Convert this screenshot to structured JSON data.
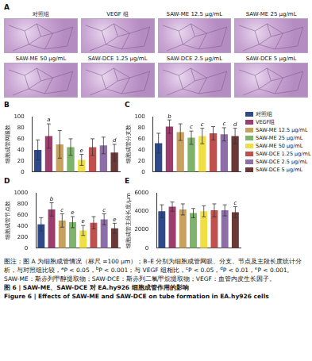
{
  "panel_a": {
    "letter": "A",
    "images": [
      "对照组",
      "VEGF 组",
      "SAW-ME 12.5 μg/mL",
      "SAW-ME 25 μg/mL",
      "SAW-ME 50 μg/mL",
      "SAW-DCE 1.25 μg/mL",
      "SAW-DCE 2.5 μg/mL",
      "SAW-DCE 5 μg/mL"
    ]
  },
  "chart_data": [
    {
      "panel": "B",
      "type": "bar",
      "y_label": "细胞成管网眼数",
      "categories": [
        "对照组",
        "VEGF组",
        "SAW-ME 12.5 μg/mL",
        "SAW-ME 25 μg/mL",
        "SAW-ME 50 μg/mL",
        "SAW-DCE 1.25 μg/mL",
        "SAW-DCE 2.5 μg/mL",
        "SAW-DCE 5 μg/mL"
      ],
      "values": [
        40,
        65,
        50,
        45,
        22,
        45,
        48,
        35
      ],
      "errors": [
        18,
        22,
        25,
        15,
        10,
        15,
        15,
        15
      ],
      "annotations": [
        null,
        "a",
        null,
        null,
        "e",
        null,
        null,
        "d"
      ],
      "colors": [
        "#2e4a8b",
        "#9c3d6d",
        "#c9a15e",
        "#7db36a",
        "#f0de45",
        "#c0504d",
        "#8d6ea8",
        "#6b3838"
      ],
      "ylim": [
        0,
        100
      ],
      "yticks": [
        0,
        20,
        40,
        60,
        80,
        100
      ],
      "tick_labels": "y",
      "grid": false,
      "legend": "right"
    },
    {
      "panel": "C",
      "type": "bar",
      "y_label": "细胞成管分支数",
      "categories": [
        "对照组",
        "VEGF组",
        "SAW-ME 12.5 μg/mL",
        "SAW-ME 25 μg/mL",
        "SAW-ME 50 μg/mL",
        "SAW-DCE 1.25 μg/mL",
        "SAW-DCE 2.5 μg/mL",
        "SAW-DCE 5 μg/mL"
      ],
      "values": [
        52,
        82,
        72,
        62,
        65,
        70,
        68,
        65
      ],
      "errors": [
        18,
        12,
        15,
        12,
        14,
        12,
        12,
        14
      ],
      "annotations": [
        null,
        "b",
        null,
        "c",
        "c",
        null,
        "c",
        "d"
      ],
      "colors": [
        "#2e4a8b",
        "#9c3d6d",
        "#c9a15e",
        "#7db36a",
        "#f0de45",
        "#c0504d",
        "#8d6ea8",
        "#6b3838"
      ],
      "ylim": [
        0,
        100
      ],
      "yticks": [
        0,
        20,
        40,
        60,
        80,
        100
      ],
      "tick_labels": "y",
      "grid": false
    },
    {
      "panel": "D",
      "type": "bar",
      "y_label": "细胞成管节点数",
      "categories": [
        "对照组",
        "VEGF组",
        "SAW-ME 12.5 μg/mL",
        "SAW-ME 25 μg/mL",
        "SAW-ME 50 μg/mL",
        "SAW-DCE 1.25 μg/mL",
        "SAW-DCE 2.5 μg/mL",
        "SAW-DCE 5 μg/mL"
      ],
      "values": [
        430,
        700,
        500,
        470,
        320,
        460,
        520,
        360
      ],
      "errors": [
        120,
        120,
        120,
        100,
        90,
        110,
        100,
        90
      ],
      "annotations": [
        null,
        "b",
        "c",
        "e",
        "e",
        null,
        "c",
        "e"
      ],
      "colors": [
        "#2e4a8b",
        "#9c3d6d",
        "#c9a15e",
        "#7db36a",
        "#f0de45",
        "#c0504d",
        "#8d6ea8",
        "#6b3838"
      ],
      "ylim": [
        0,
        1000
      ],
      "yticks": [
        0,
        200,
        400,
        600,
        800,
        1000
      ],
      "tick_labels": "y",
      "grid": false
    },
    {
      "panel": "E",
      "type": "bar",
      "y_label": "细胞成管主段长度/μm",
      "categories": [
        "对照组",
        "VEGF组",
        "SAW-ME 12.5 μg/mL",
        "SAW-ME 25 μg/mL",
        "SAW-ME 50 μg/mL",
        "SAW-DCE 1.25 μg/mL",
        "SAW-DCE 2.5 μg/mL",
        "SAW-DCE 5 μg/mL"
      ],
      "values": [
        4000,
        4500,
        4200,
        3800,
        4000,
        4100,
        4100,
        3900
      ],
      "errors": [
        700,
        500,
        600,
        500,
        600,
        700,
        600,
        600
      ],
      "annotations": [
        null,
        null,
        null,
        null,
        null,
        null,
        null,
        "c"
      ],
      "colors": [
        "#2e4a8b",
        "#9c3d6d",
        "#c9a15e",
        "#7db36a",
        "#f0de45",
        "#c0504d",
        "#8d6ea8",
        "#6b3838"
      ],
      "ylim": [
        0,
        6000
      ],
      "yticks": [
        0,
        2000,
        4000,
        6000
      ],
      "tick_labels": "y",
      "grid": false
    }
  ],
  "caption": {
    "note": [
      "图注：图 A 为细胞成管情况（标尺 =100 μm）；B–E 分别为细胞成管网眼、分支、节点及主段长度统计分析，与对照组比较，",
      {
        "sup": "a"
      },
      "P < 0.05，",
      {
        "sup": "b"
      },
      "P < 0.001；与 VEGF 组相比，",
      {
        "sup": "c"
      },
      "P < 0.05，",
      {
        "sup": "d"
      },
      "P < 0.01，",
      {
        "sup": "e"
      },
      "P < 0.001。SAW-ME：斯赤列甲醇提取物；SAW-DCE：斯赤列二氯甲烷提取物；VEGF：血管内皮生长因子。"
    ],
    "title_cn": "图 6 | SAW-ME、SAW-DCE 对 EA.hy926 细胞成管作用的影响",
    "title_en": "Figure 6 | Effects of SAW-ME and SAW-DCE on tube formation in EA.hy926 cells"
  }
}
